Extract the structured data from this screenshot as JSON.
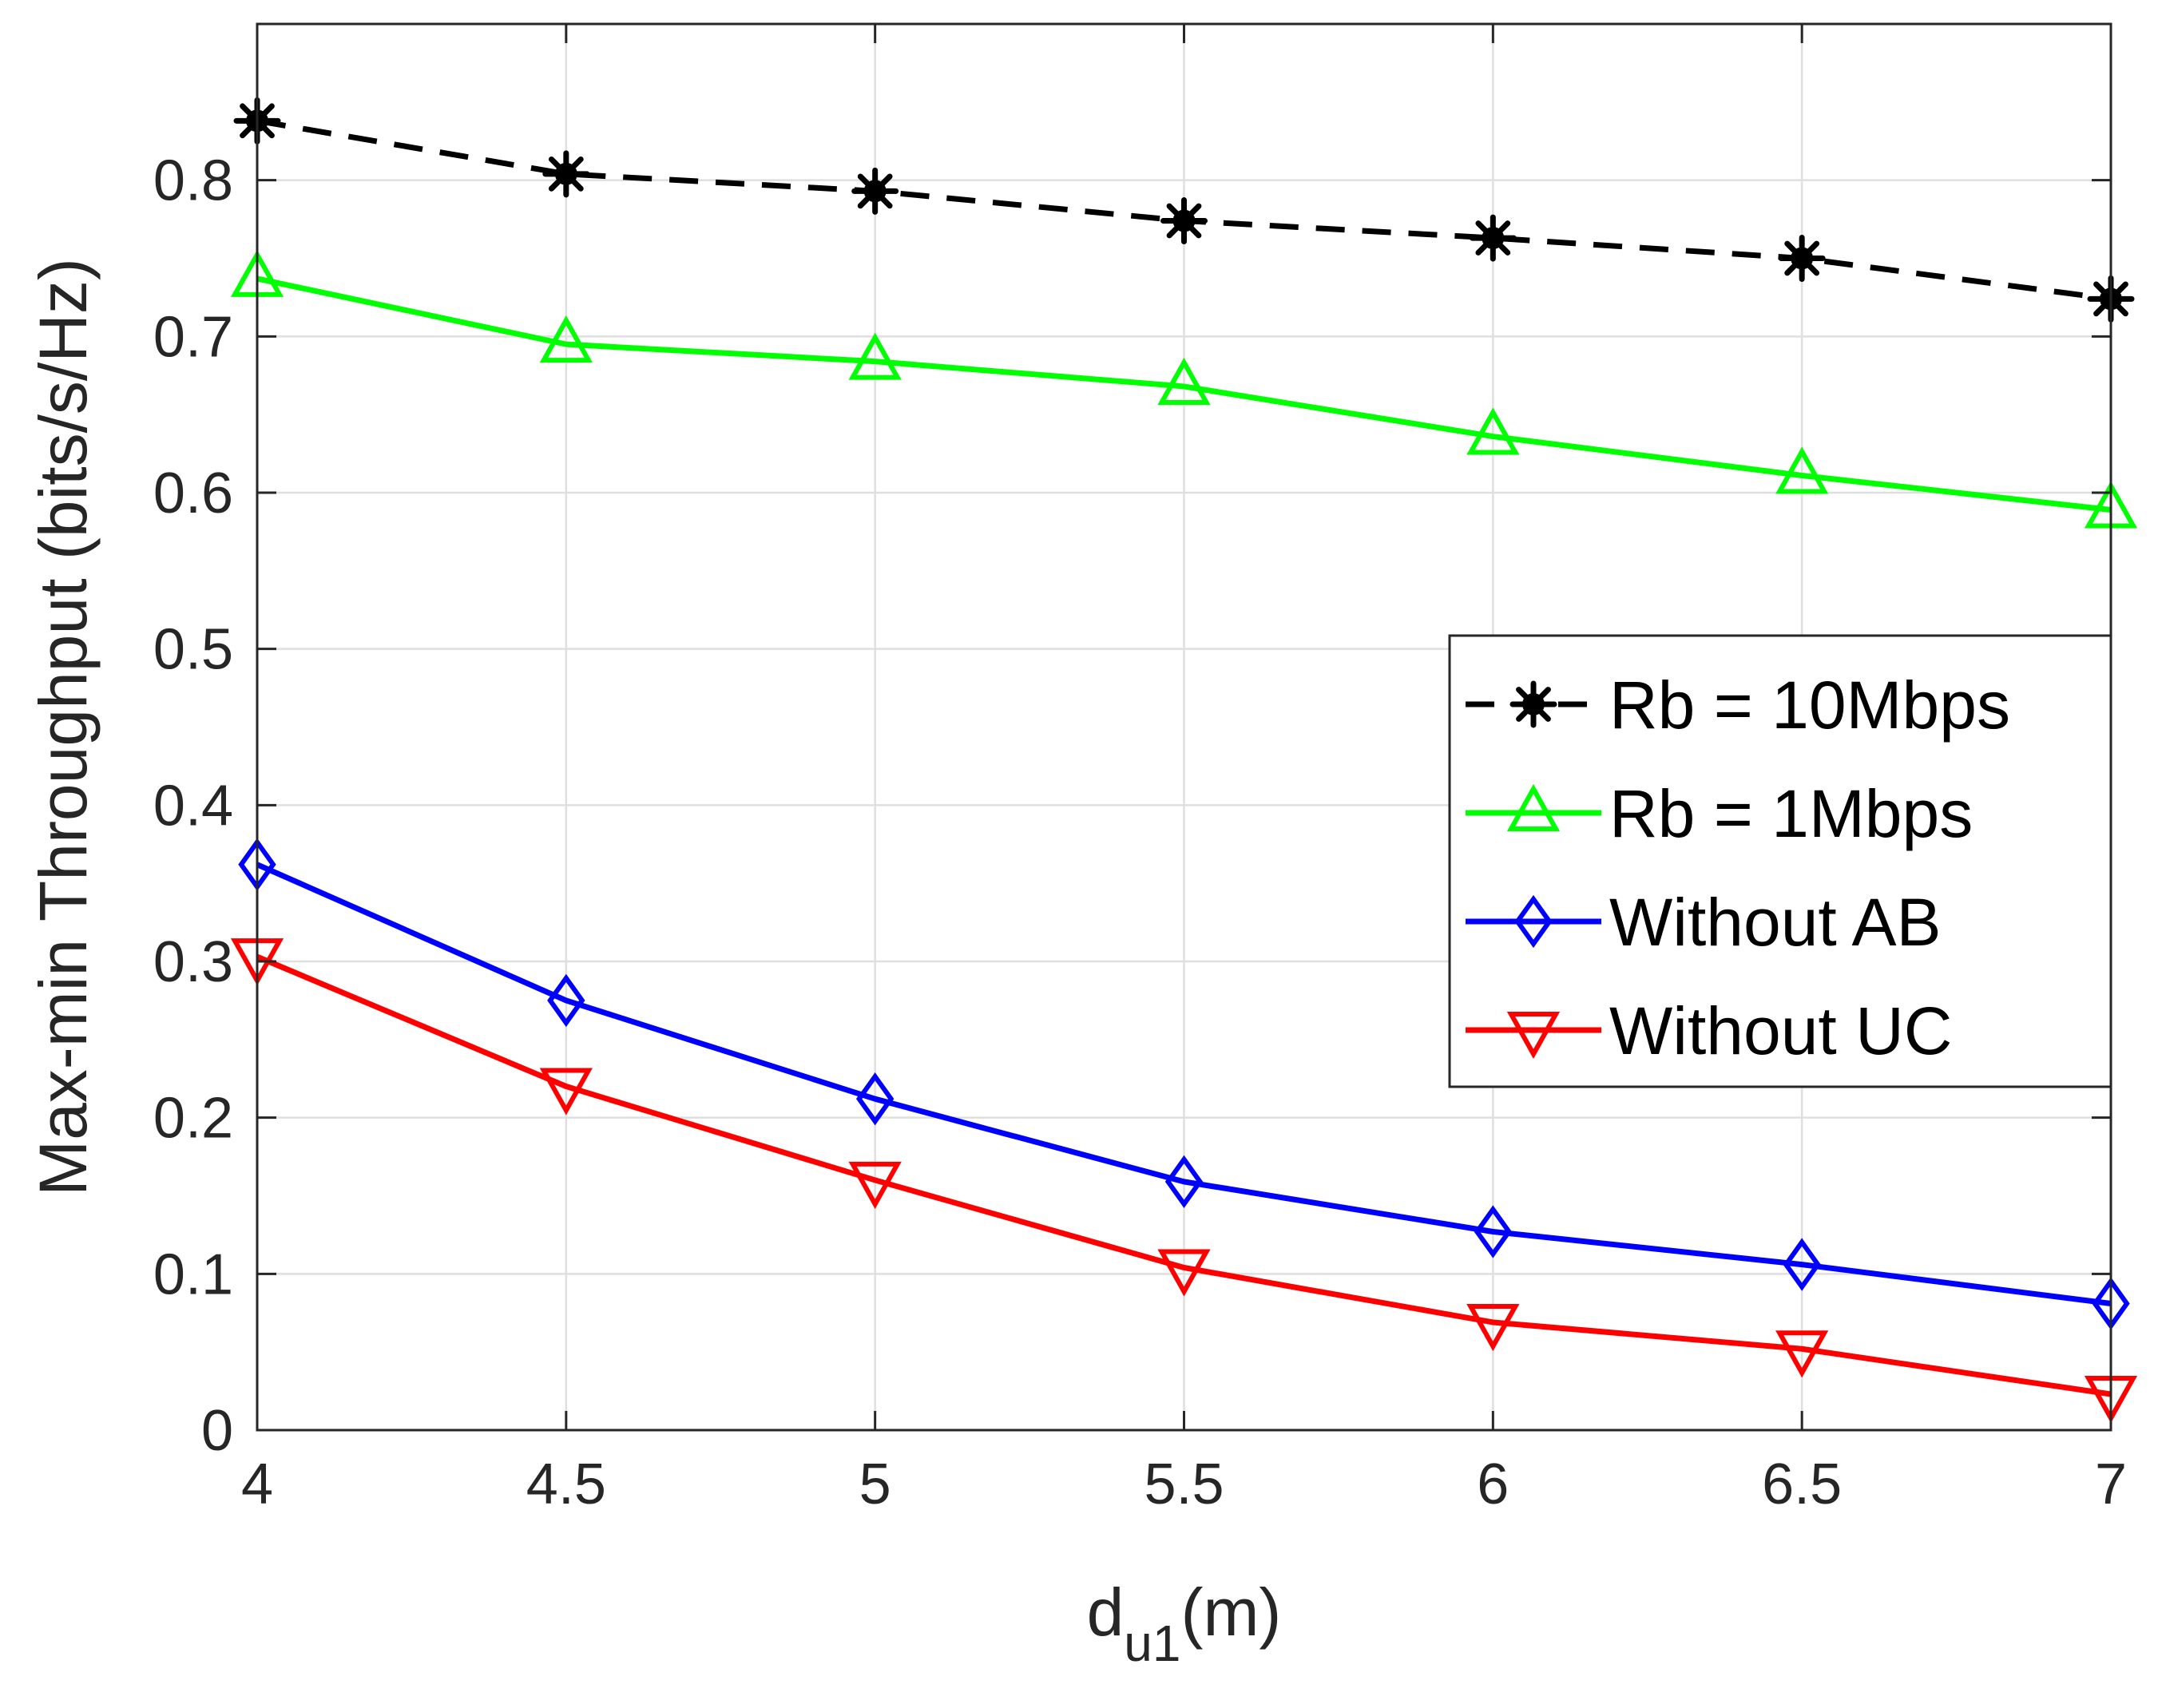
{
  "chart_data": {
    "type": "line",
    "title": "",
    "xlabel_main": "d",
    "xlabel_sub": "u1",
    "xlabel_unit": "(m)",
    "ylabel": "Max-min Throughput (bits/s/Hz)",
    "xlim": [
      4,
      7
    ],
    "ylim": [
      0,
      0.9
    ],
    "x": [
      4,
      4.5,
      5,
      5.5,
      6,
      6.5,
      7
    ],
    "x_tick_labels": [
      "4",
      "4.5",
      "5",
      "5.5",
      "6",
      "6.5",
      "7"
    ],
    "y_ticks": [
      0,
      0.1,
      0.2,
      0.3,
      0.4,
      0.5,
      0.6,
      0.7,
      0.8
    ],
    "y_tick_labels": [
      "0",
      "0.1",
      "0.2",
      "0.3",
      "0.4",
      "0.5",
      "0.6",
      "0.7",
      "0.8"
    ],
    "grid": true,
    "legend_position": "center-right",
    "series": [
      {
        "name": "Rb = 10Mbps",
        "color": "#000000",
        "dash": "dashed",
        "marker": "asterisk",
        "values": [
          0.838,
          0.804,
          0.793,
          0.774,
          0.763,
          0.75,
          0.724
        ]
      },
      {
        "name": "Rb = 1Mbps",
        "color": "#00ff00",
        "dash": "solid",
        "marker": "triangle-up",
        "values": [
          0.737,
          0.695,
          0.684,
          0.668,
          0.636,
          0.611,
          0.589
        ]
      },
      {
        "name": "Without AB",
        "color": "#0000ff",
        "dash": "solid",
        "marker": "diamond",
        "values": [
          0.362,
          0.275,
          0.212,
          0.159,
          0.127,
          0.106,
          0.081
        ]
      },
      {
        "name": "Without UC",
        "color": "#ff0000",
        "dash": "solid",
        "marker": "triangle-down",
        "values": [
          0.303,
          0.22,
          0.16,
          0.104,
          0.069,
          0.052,
          0.023
        ]
      }
    ]
  }
}
